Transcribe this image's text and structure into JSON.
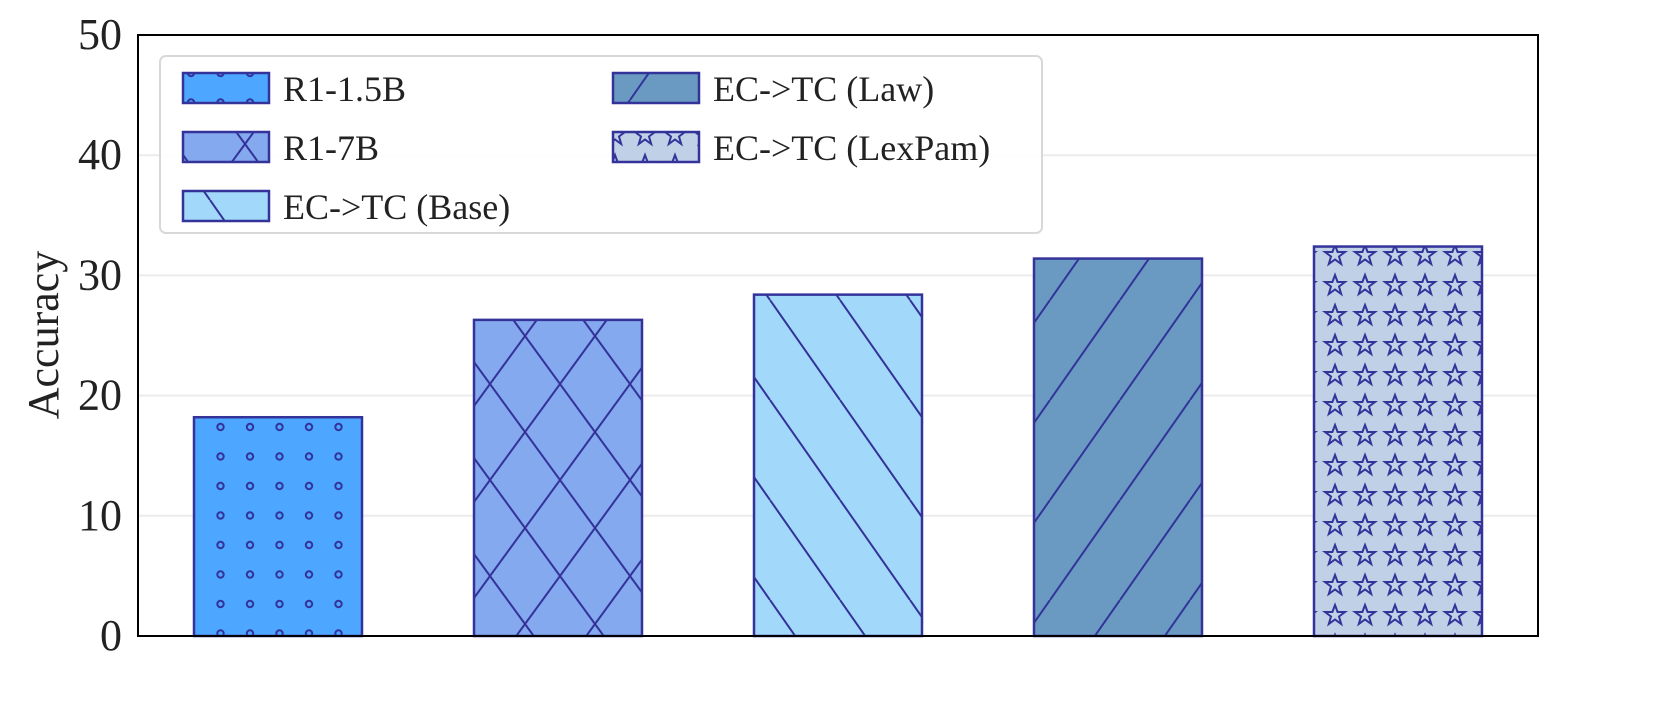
{
  "chart_data": {
    "type": "bar",
    "title": "",
    "xlabel": "",
    "ylabel": "Accuracy",
    "ylim": [
      0,
      50
    ],
    "yticks": [
      0,
      10,
      20,
      30,
      40,
      50
    ],
    "grid": true,
    "legend_position": "top-left",
    "categories": [
      "R1-1.5B",
      "R1-7B",
      "EC->TC (Base)",
      "EC->TC (Law)",
      "EC->TC (LexPam)"
    ],
    "values": [
      18.2,
      26.3,
      28.4,
      31.4,
      32.4
    ],
    "colors": [
      "#4da6ff",
      "#84a9ee",
      "#a2d8fa",
      "#6a9ac2",
      "#c0d0e6"
    ],
    "hatches": [
      "dots",
      "crosshatch",
      "backslash",
      "slash",
      "stars"
    ],
    "edge_color": "#333399"
  }
}
